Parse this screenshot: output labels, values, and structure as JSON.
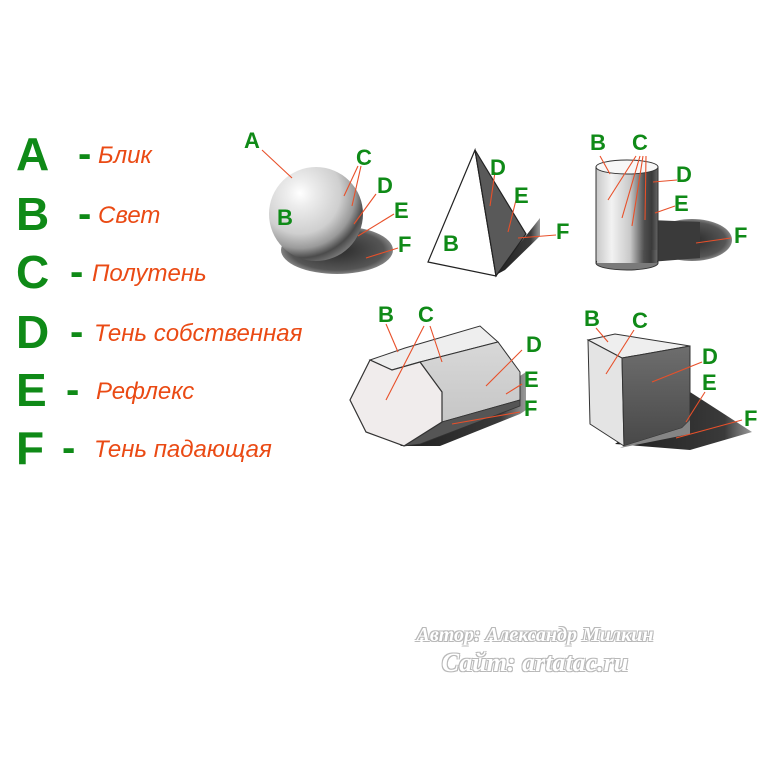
{
  "legend": [
    {
      "letter": "A",
      "term": "Блик"
    },
    {
      "letter": "B",
      "term": "Свет"
    },
    {
      "letter": "C",
      "term": "Полутень"
    },
    {
      "letter": "D",
      "term": "Тень собственная"
    },
    {
      "letter": "E",
      "term": "Рефлекс"
    },
    {
      "letter": "F",
      "term": "Тень падающая"
    }
  ],
  "dash": "-",
  "labels": {
    "A": "A",
    "B": "B",
    "C": "C",
    "D": "D",
    "E": "E",
    "F": "F"
  },
  "credits": {
    "author": "Автор: Александр Милкин",
    "site": "Сайт: artatac.ru"
  },
  "colors": {
    "label_green": "#0f8a17",
    "term_orange": "#ea4a14",
    "pointer_red": "#e8502a"
  }
}
